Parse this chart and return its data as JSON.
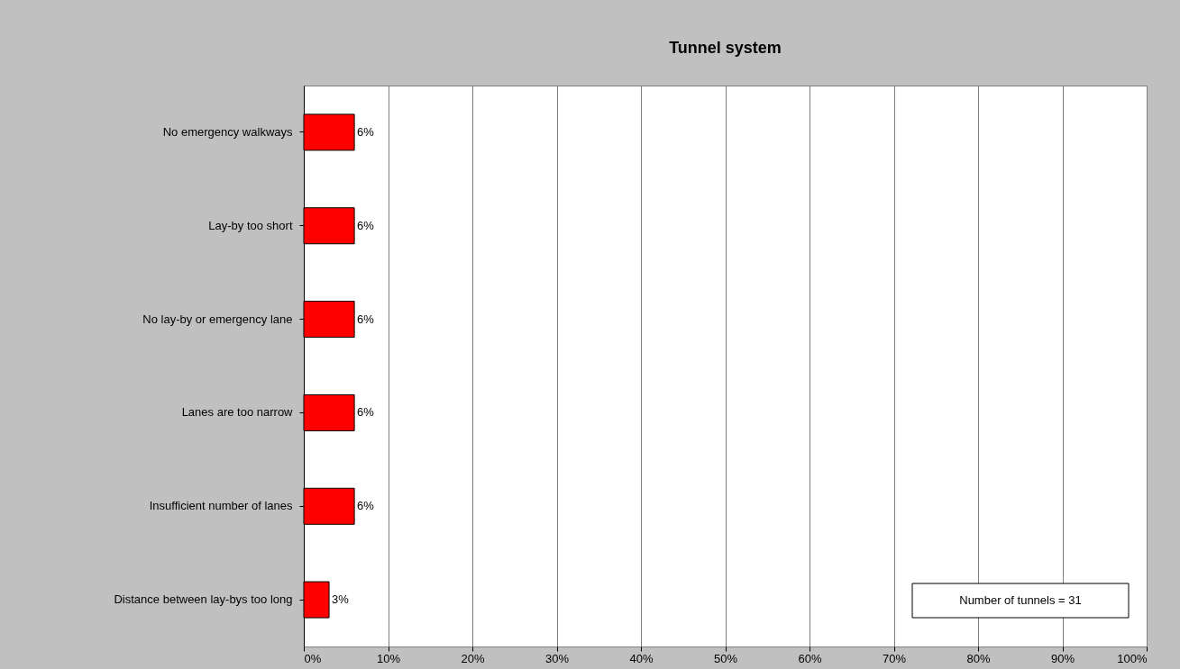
{
  "chart_data": {
    "type": "bar",
    "orientation": "horizontal",
    "title": "Tunnel system",
    "categories": [
      "No emergency walkways",
      "Lay-by too short",
      "No lay-by or emergency lane",
      "Lanes are too narrow",
      "Insufficient number of lanes",
      "Distance between lay-bys too long"
    ],
    "values": [
      6,
      6,
      6,
      6,
      6,
      3
    ],
    "value_labels": [
      "6%",
      "6%",
      "6%",
      "6%",
      "6%",
      "3%"
    ],
    "color": "#ff0000",
    "xlim": [
      0,
      100
    ],
    "xticks": [
      {
        "value": 0,
        "label": "0%"
      },
      {
        "value": 10,
        "label": "10%"
      },
      {
        "value": 20,
        "label": "20%"
      },
      {
        "value": 30,
        "label": "30%"
      },
      {
        "value": 40,
        "label": "40%"
      },
      {
        "value": 50,
        "label": "50%"
      },
      {
        "value": 60,
        "label": "60%"
      },
      {
        "value": 70,
        "label": "70%"
      },
      {
        "value": 80,
        "label": "80%"
      },
      {
        "value": 90,
        "label": "90%"
      },
      {
        "value": 100,
        "label": "100%"
      }
    ],
    "grid": "x",
    "annotations": [
      "Number of tunnels = 31"
    ]
  }
}
